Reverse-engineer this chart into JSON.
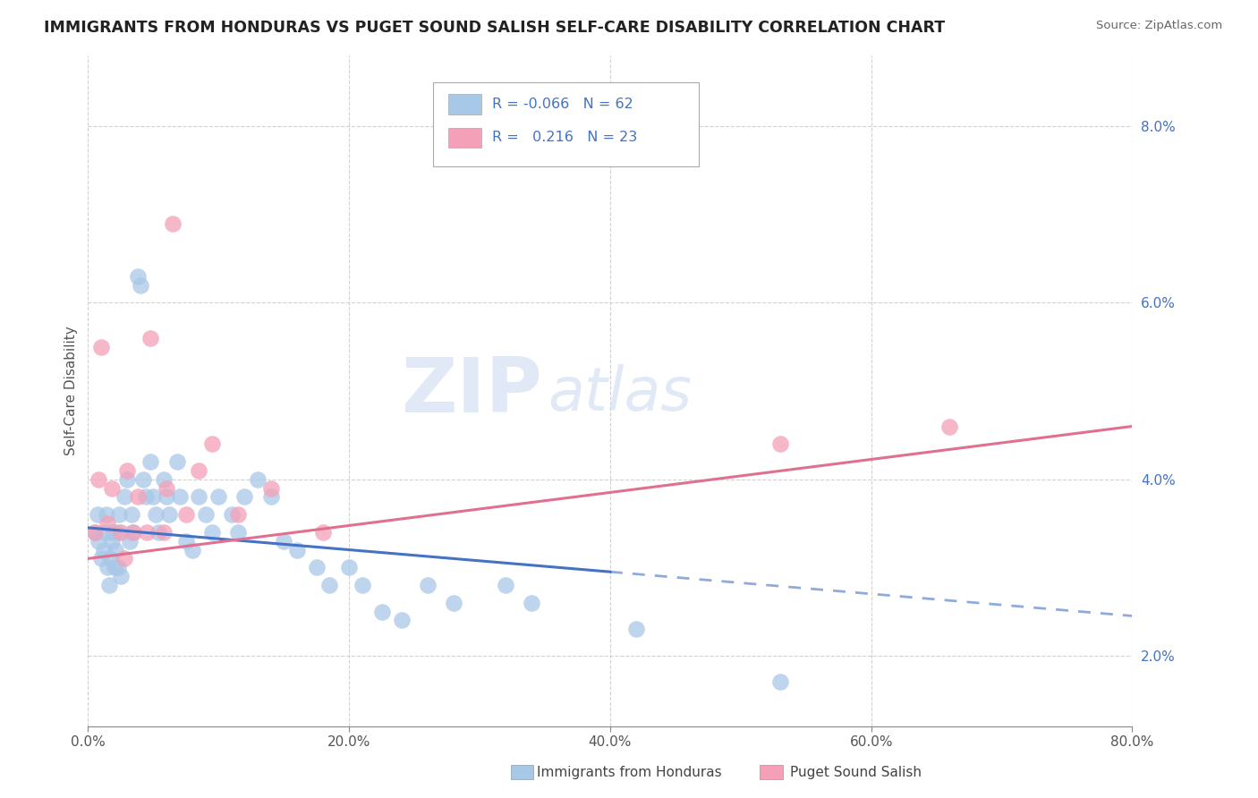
{
  "title": "IMMIGRANTS FROM HONDURAS VS PUGET SOUND SALISH SELF-CARE DISABILITY CORRELATION CHART",
  "source": "Source: ZipAtlas.com",
  "ylabel": "Self-Care Disability",
  "xlim": [
    0.0,
    0.8
  ],
  "ylim": [
    0.012,
    0.088
  ],
  "xticks": [
    0.0,
    0.2,
    0.4,
    0.6,
    0.8
  ],
  "yticks": [
    0.02,
    0.04,
    0.06,
    0.08
  ],
  "ytick_labels": [
    "2.0%",
    "4.0%",
    "6.0%",
    "8.0%"
  ],
  "xtick_labels": [
    "0.0%",
    "20.0%",
    "40.0%",
    "60.0%",
    "80.0%"
  ],
  "series1_name": "Immigrants from Honduras",
  "series2_name": "Puget Sound Salish",
  "series1_color": "#a8c8e8",
  "series2_color": "#f4a0b8",
  "series1_line_color": "#4472c4",
  "series2_line_color": "#e07090",
  "watermark_zip": "ZIP",
  "watermark_atlas": "atlas",
  "blue_scatter_x": [
    0.005,
    0.007,
    0.008,
    0.01,
    0.012,
    0.013,
    0.014,
    0.015,
    0.016,
    0.017,
    0.018,
    0.019,
    0.02,
    0.021,
    0.022,
    0.023,
    0.024,
    0.025,
    0.028,
    0.03,
    0.032,
    0.033,
    0.034,
    0.038,
    0.04,
    0.042,
    0.044,
    0.048,
    0.05,
    0.052,
    0.054,
    0.058,
    0.06,
    0.062,
    0.068,
    0.07,
    0.075,
    0.08,
    0.085,
    0.09,
    0.095,
    0.1,
    0.11,
    0.115,
    0.12,
    0.13,
    0.14,
    0.15,
    0.16,
    0.175,
    0.185,
    0.2,
    0.21,
    0.225,
    0.24,
    0.26,
    0.28,
    0.32,
    0.34,
    0.42,
    0.53
  ],
  "blue_scatter_y": [
    0.034,
    0.036,
    0.033,
    0.031,
    0.032,
    0.034,
    0.036,
    0.03,
    0.028,
    0.031,
    0.033,
    0.034,
    0.03,
    0.032,
    0.034,
    0.03,
    0.036,
    0.029,
    0.038,
    0.04,
    0.033,
    0.036,
    0.034,
    0.063,
    0.062,
    0.04,
    0.038,
    0.042,
    0.038,
    0.036,
    0.034,
    0.04,
    0.038,
    0.036,
    0.042,
    0.038,
    0.033,
    0.032,
    0.038,
    0.036,
    0.034,
    0.038,
    0.036,
    0.034,
    0.038,
    0.04,
    0.038,
    0.033,
    0.032,
    0.03,
    0.028,
    0.03,
    0.028,
    0.025,
    0.024,
    0.028,
    0.026,
    0.028,
    0.026,
    0.023,
    0.017
  ],
  "pink_scatter_x": [
    0.005,
    0.008,
    0.01,
    0.015,
    0.018,
    0.025,
    0.028,
    0.03,
    0.035,
    0.038,
    0.045,
    0.048,
    0.058,
    0.06,
    0.065,
    0.075,
    0.085,
    0.095,
    0.115,
    0.14,
    0.18,
    0.53,
    0.66
  ],
  "pink_scatter_y": [
    0.034,
    0.04,
    0.055,
    0.035,
    0.039,
    0.034,
    0.031,
    0.041,
    0.034,
    0.038,
    0.034,
    0.056,
    0.034,
    0.039,
    0.069,
    0.036,
    0.041,
    0.044,
    0.036,
    0.039,
    0.034,
    0.044,
    0.046
  ],
  "blue_trend_x0": 0.0,
  "blue_trend_x_solid_end": 0.4,
  "blue_trend_x_dash_end": 0.8,
  "blue_trend_y0": 0.0345,
  "blue_trend_y_solid_end": 0.0295,
  "blue_trend_y_dash_end": 0.0245,
  "pink_trend_x0": 0.0,
  "pink_trend_x_end": 0.8,
  "pink_trend_y0": 0.031,
  "pink_trend_y_end": 0.046
}
